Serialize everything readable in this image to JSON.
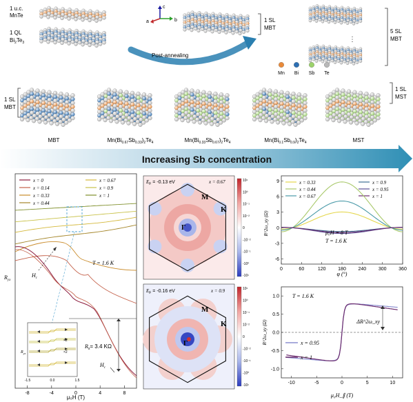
{
  "top": {
    "layer_mnte_line1": "1 u.c.",
    "layer_mnte_line2": "MnTe",
    "layer_bite_line1": "1 QL",
    "layer_bite_line2": "Bi",
    "layer_bite_sub1": "2",
    "layer_bite_sub2": "3",
    "layer_bite_te": "Te",
    "axis_a": "a",
    "axis_b": "b",
    "axis_c": "c",
    "label_1sl_mbt_line1": "1 SL",
    "label_1sl_mbt_line2": "MBT",
    "label_5sl_line1": "5 SL",
    "label_5sl_line2": "MBT",
    "post_annealing": "Post-annealing",
    "legend": [
      {
        "symbol": "Mn",
        "color": "#e98a3a"
      },
      {
        "symbol": "Bi",
        "color": "#2d6fb3"
      },
      {
        "symbol": "Sb",
        "color": "#9cd26b"
      },
      {
        "symbol": "Te",
        "color": "#b8b8b8"
      }
    ]
  },
  "row2": {
    "left_label_line1": "1 SL",
    "left_label_line2": "MBT",
    "right_label_line1": "1 SL",
    "right_label_line2": "MST",
    "crystals": [
      {
        "label": "MBT"
      },
      {
        "label_pre": "Mn(Bi",
        "sub1": "0.67",
        "mid": "Sb",
        "sub2": "0.33",
        "post": ")",
        "sub3": "2",
        "te": "Te",
        "sub4": "4"
      },
      {
        "label_pre": "Mn(Bi",
        "sub1": "0.33",
        "mid": "Sb",
        "sub2": "0.67",
        "post": ")",
        "sub3": "2",
        "te": "Te",
        "sub4": "4"
      },
      {
        "label_pre": "Mn(Bi",
        "sub1": "0.1",
        "mid": "Sb",
        "sub2": "0.9",
        "post": ")",
        "sub3": "2",
        "te": "Te",
        "sub4": "4"
      },
      {
        "label": "MST"
      }
    ]
  },
  "banner": {
    "text": "Increasing Sb concentration"
  },
  "panel_rho": {
    "ylabel": "R",
    "ylabel_sub": "yx",
    "xlabel": "μ₀H (T)",
    "xticks": [
      "-8",
      "-4",
      "0",
      "4",
      "8"
    ],
    "temperature": "T = 1.6 K",
    "hc_label": "H",
    "hc_sub": "c",
    "rs_label": "R",
    "rs_sub": "s",
    "rs_value": "= 3.4 KΩ",
    "inset_ylabel": "R",
    "inset_ylabel_sub": "yx",
    "inset_xticks": [
      "-1.5",
      "0.0",
      "1.5"
    ],
    "inset_x2a": "×2",
    "inset_x2b": "×2",
    "legend_left": [
      {
        "label": "x = 0",
        "color": "#8b1a3c"
      },
      {
        "label": "x = 0.14",
        "color": "#c4614a"
      },
      {
        "label": "x = 0.33",
        "color": "#c98a28"
      },
      {
        "label": "x = 0.44",
        "color": "#a5862a"
      }
    ],
    "legend_right": [
      {
        "label": "x = 0.67",
        "color": "#d4b83a"
      },
      {
        "label": "x = 0.9",
        "color": "#c9c24a"
      },
      {
        "label": "x = 1",
        "color": "#7f8f2a"
      }
    ]
  },
  "panel_ef1": {
    "ef": "E",
    "ef_sub": "F",
    "ef_val": " = -0.13 eV",
    "x_label": "x = 0.67",
    "m": "M",
    "k": "K",
    "gamma": "Γ",
    "colorbar": [
      "10¹",
      "10⁰",
      "10⁻¹",
      "10⁻²",
      "0",
      "-10⁻²",
      "-10⁻¹",
      "-10⁰",
      "-10¹"
    ]
  },
  "panel_ef2": {
    "ef": "E",
    "ef_sub": "F",
    "ef_val": " = -0.16 eV",
    "x_label": "x = 0.9",
    "m": "M",
    "k": "K",
    "gamma": "Γ",
    "colorbar": [
      "10¹",
      "10⁰",
      "10⁻¹",
      "10⁻²",
      "0",
      "-10⁻²",
      "-10⁻¹",
      "-10⁰",
      "-10¹"
    ]
  },
  "chart_data": [
    {
      "type": "line",
      "ylabel": "R^2ω_xy (Ω)",
      "xlabel": "φ (°)",
      "xlim": [
        0,
        360
      ],
      "ylim": [
        -7,
        10
      ],
      "xticks": [
        "0",
        "60",
        "120",
        "180",
        "240",
        "300",
        "360"
      ],
      "yticks": [
        "9",
        "6",
        "3",
        "0",
        "-3",
        "-6"
      ],
      "annotation_field": "μ₀H = 8 T",
      "annotation_temp": "T = 1.6 K",
      "legend_left": [
        {
          "label": "x = 0.33",
          "color": "#e4d64a"
        },
        {
          "label": "x = 0.44",
          "color": "#a9c96b"
        },
        {
          "label": "x = 0.67",
          "color": "#4a9aa8"
        }
      ],
      "legend_right": [
        {
          "label": "x = 0.9",
          "color": "#3e6f94"
        },
        {
          "label": "x = 0.95",
          "color": "#5a4f95"
        },
        {
          "label": "x = 1",
          "color": "#6b2b6e"
        }
      ],
      "series": [
        {
          "name": "x = 0.33",
          "amplitude": 3.3,
          "color": "#e4d64a"
        },
        {
          "name": "x = 0.44",
          "amplitude": 9.6,
          "color": "#a9c96b"
        },
        {
          "name": "x = 0.67",
          "amplitude": 5.6,
          "color": "#4a9aa8"
        },
        {
          "name": "x = 0.9",
          "amplitude": -0.8,
          "color": "#3e6f94"
        },
        {
          "name": "x = 0.95",
          "amplitude": -1.2,
          "color": "#5a4f95"
        },
        {
          "name": "x = 1",
          "amplitude": -1.0,
          "color": "#6b2b6e"
        }
      ]
    },
    {
      "type": "line",
      "ylabel": "R^2ω_xy (Ω)",
      "xlabel": "μ₀H_∥ (T)",
      "xlim": [
        -12,
        12
      ],
      "ylim": [
        -1.25,
        1.25
      ],
      "xticks": [
        "-10",
        "-5",
        "0",
        "5",
        "10"
      ],
      "yticks": [
        "1.0",
        "0.5",
        "0.0",
        "-0.5",
        "-1.0"
      ],
      "temperature": "T = 1.6 K",
      "delta_label": "ΔR^2ω_xy",
      "series": [
        {
          "name": "x = 0.95",
          "color": "#8b8fd0",
          "saturation": 0.7
        },
        {
          "name": "x = 1",
          "color": "#6b2b6e",
          "saturation": 0.72
        }
      ]
    }
  ]
}
